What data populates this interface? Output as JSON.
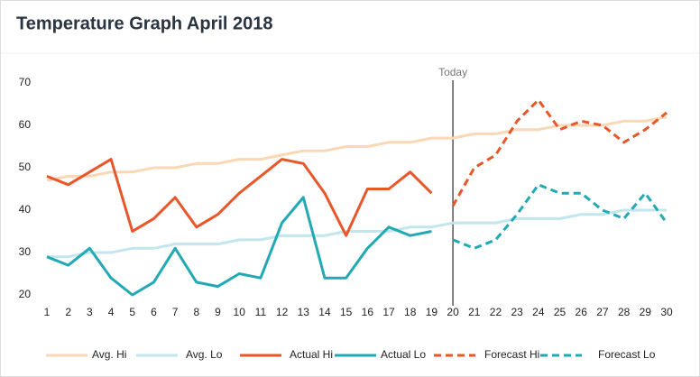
{
  "chart_data": {
    "type": "line",
    "title": "Temperature Graph April 2018",
    "x": [
      1,
      2,
      3,
      4,
      5,
      6,
      7,
      8,
      9,
      10,
      11,
      12,
      13,
      14,
      15,
      16,
      17,
      18,
      19,
      20,
      21,
      22,
      23,
      24,
      25,
      26,
      27,
      28,
      29,
      30
    ],
    "xlim": [
      1,
      30
    ],
    "ylim": [
      20,
      70
    ],
    "yticks": [
      20,
      30,
      40,
      50,
      60,
      70
    ],
    "grid": false,
    "legend": "bottom",
    "annotations": [
      {
        "x": 20,
        "text": "Today"
      }
    ],
    "series": [
      {
        "name": "Avg. Hi",
        "color": "#fad7b5",
        "dash": false,
        "values": [
          47,
          48,
          48,
          49,
          49,
          50,
          50,
          51,
          51,
          52,
          52,
          53,
          54,
          54,
          55,
          55,
          56,
          56,
          57,
          57,
          58,
          58,
          59,
          59,
          60,
          60,
          60,
          61,
          61,
          62
        ]
      },
      {
        "name": "Avg. Lo",
        "color": "#c3e5ee",
        "dash": false,
        "values": [
          29,
          29,
          30,
          30,
          31,
          31,
          32,
          32,
          32,
          33,
          33,
          34,
          34,
          34,
          35,
          35,
          35,
          36,
          36,
          37,
          37,
          37,
          38,
          38,
          38,
          39,
          39,
          40,
          40,
          40
        ]
      },
      {
        "name": "Actual Hi",
        "color": "#e8572a",
        "dash": false,
        "values": [
          48,
          46,
          49,
          52,
          35,
          38,
          43,
          36,
          39,
          44,
          48,
          52,
          51,
          44,
          34,
          45,
          45,
          49,
          44,
          null,
          null,
          null,
          null,
          null,
          null,
          null,
          null,
          null,
          null,
          null
        ]
      },
      {
        "name": "Actual Lo",
        "color": "#22a9b4",
        "dash": false,
        "values": [
          29,
          27,
          31,
          24,
          20,
          23,
          31,
          23,
          22,
          25,
          24,
          37,
          43,
          24,
          24,
          31,
          36,
          34,
          35,
          null,
          null,
          null,
          null,
          null,
          null,
          null,
          null,
          null,
          null,
          null
        ]
      },
      {
        "name": "Forecast Hi",
        "color": "#e8572a",
        "dash": true,
        "values": [
          null,
          null,
          null,
          null,
          null,
          null,
          null,
          null,
          null,
          null,
          null,
          null,
          null,
          null,
          null,
          null,
          null,
          null,
          null,
          41,
          50,
          53,
          61,
          66,
          59,
          61,
          60,
          56,
          59,
          63
        ]
      },
      {
        "name": "Forecast Lo",
        "color": "#22a9b4",
        "dash": true,
        "values": [
          null,
          null,
          null,
          null,
          null,
          null,
          null,
          null,
          null,
          null,
          null,
          null,
          null,
          null,
          null,
          null,
          null,
          null,
          null,
          33,
          31,
          33,
          39,
          46,
          44,
          44,
          40,
          38,
          44,
          37
        ]
      }
    ]
  }
}
